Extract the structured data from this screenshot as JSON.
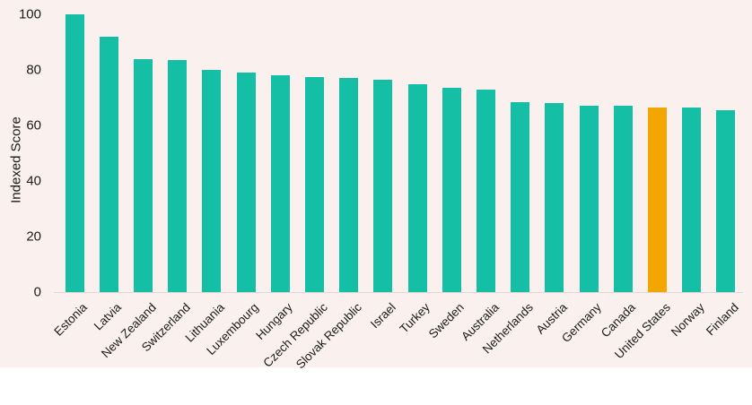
{
  "page": {
    "background_color": "#faf1ee"
  },
  "chart_data": {
    "type": "bar",
    "title": "",
    "xlabel": "",
    "ylabel": "Indexed Score",
    "ylim": [
      0,
      100
    ],
    "yticks": [
      0,
      20,
      40,
      60,
      80,
      100
    ],
    "grid": false,
    "legend_position": "none",
    "bar_color": "#14bfa6",
    "highlight_color": "#f3a600",
    "highlight_category": "United States",
    "categories": [
      "Estonia",
      "Latvia",
      "New Zealand",
      "Switzerland",
      "Lithuania",
      "Luxembourg",
      "Hungary",
      "Czech Republic",
      "Slovak Republic",
      "Israel",
      "Turkey",
      "Sweden",
      "Australia",
      "Netherlands",
      "Austria",
      "Germany",
      "Canada",
      "United States",
      "Norway",
      "Finland"
    ],
    "values": [
      100,
      92,
      84,
      83.5,
      80,
      79,
      78,
      77.5,
      77,
      76.5,
      75,
      73.5,
      73,
      68.5,
      68,
      67,
      67,
      66.5,
      66.5,
      65.5
    ]
  }
}
